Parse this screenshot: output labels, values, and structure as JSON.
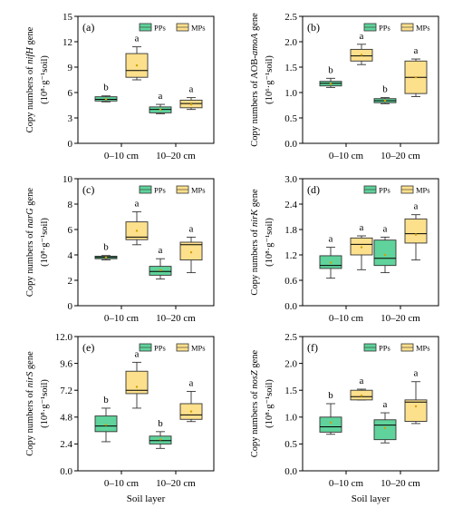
{
  "colors": {
    "PPs": "#5fd39b",
    "MPs": "#fde08c",
    "median": "#000000",
    "mean": "#d4a000"
  },
  "xlabel_text": "Soil layer",
  "chart_data": [
    {
      "type": "boxplot",
      "panel": "(a)",
      "ylabel_prefix": "Copy numbers of ",
      "gene": "nifH",
      "ylabel_suffix": " gene",
      "unit": "(10⁸·g⁻¹soil)",
      "ylim": [
        0,
        15
      ],
      "yticks": [
        0,
        3,
        6,
        9,
        12,
        15
      ],
      "categories": [
        "0–10 cm",
        "10–20 cm"
      ],
      "legend": [
        "PPs",
        "MPs"
      ],
      "legend_position": "top-right",
      "series": [
        {
          "name": "PPs",
          "boxes": [
            {
              "min": 4.9,
              "q1": 5.0,
              "median": 5.2,
              "q3": 5.5,
              "max": 5.6,
              "mean": 5.2,
              "sig": "b"
            },
            {
              "min": 3.5,
              "q1": 3.6,
              "median": 4.0,
              "q3": 4.3,
              "max": 4.6,
              "mean": 4.0,
              "sig": "a"
            }
          ]
        },
        {
          "name": "MPs",
          "boxes": [
            {
              "min": 7.5,
              "q1": 7.8,
              "median": 8.6,
              "q3": 10.6,
              "max": 11.4,
              "mean": 9.2,
              "sig": "a"
            },
            {
              "min": 4.0,
              "q1": 4.2,
              "median": 4.7,
              "q3": 5.1,
              "max": 5.4,
              "mean": 4.6,
              "sig": "a"
            }
          ]
        }
      ]
    },
    {
      "type": "boxplot",
      "panel": "(b)",
      "ylabel_prefix": "Copy numbers of AOB-",
      "gene": "amoA",
      "ylabel_suffix": " gene",
      "unit": "(10⁶·g⁻¹soil)",
      "ylim": [
        0.0,
        2.5
      ],
      "yticks": [
        0.0,
        0.5,
        1.0,
        1.5,
        2.0,
        2.5
      ],
      "categories": [
        "0–10 cm",
        "10–20 cm"
      ],
      "legend": [
        "PPs",
        "MPs"
      ],
      "legend_position": "top-right",
      "series": [
        {
          "name": "PPs",
          "boxes": [
            {
              "min": 1.1,
              "q1": 1.13,
              "median": 1.18,
              "q3": 1.22,
              "max": 1.28,
              "mean": 1.17,
              "sig": "b"
            },
            {
              "min": 0.78,
              "q1": 0.8,
              "median": 0.84,
              "q3": 0.88,
              "max": 0.9,
              "mean": 0.84,
              "sig": "b"
            }
          ]
        },
        {
          "name": "MPs",
          "boxes": [
            {
              "min": 1.55,
              "q1": 1.62,
              "median": 1.72,
              "q3": 1.85,
              "max": 1.95,
              "mean": 1.74,
              "sig": "a"
            },
            {
              "min": 0.92,
              "q1": 0.98,
              "median": 1.3,
              "q3": 1.62,
              "max": 1.66,
              "mean": 1.3,
              "sig": "a"
            }
          ]
        }
      ]
    },
    {
      "type": "boxplot",
      "panel": "(c)",
      "ylabel_prefix": "Copy numbers of ",
      "gene": "narG",
      "ylabel_suffix": " gene",
      "unit": "(10⁸·g⁻¹soil)",
      "ylim": [
        0,
        10
      ],
      "yticks": [
        0,
        2,
        4,
        6,
        8,
        10
      ],
      "categories": [
        "0–10 cm",
        "10–20 cm"
      ],
      "legend": [
        "PPs",
        "MPs"
      ],
      "legend_position": "top-right",
      "series": [
        {
          "name": "PPs",
          "boxes": [
            {
              "min": 3.6,
              "q1": 3.7,
              "median": 3.8,
              "q3": 3.9,
              "max": 3.95,
              "mean": 3.8,
              "sig": "b"
            },
            {
              "min": 2.1,
              "q1": 2.4,
              "median": 2.7,
              "q3": 3.1,
              "max": 3.7,
              "mean": 2.8,
              "sig": "a"
            }
          ]
        },
        {
          "name": "MPs",
          "boxes": [
            {
              "min": 4.8,
              "q1": 5.2,
              "median": 5.4,
              "q3": 6.6,
              "max": 7.4,
              "mean": 5.9,
              "sig": "a"
            },
            {
              "min": 2.6,
              "q1": 3.6,
              "median": 4.8,
              "q3": 5.0,
              "max": 5.4,
              "mean": 4.2,
              "sig": "a"
            }
          ]
        }
      ]
    },
    {
      "type": "boxplot",
      "panel": "(d)",
      "ylabel_prefix": "Copy numbers of ",
      "gene": "nirK",
      "ylabel_suffix": " gene",
      "unit": "(10⁸·g⁻¹soil)",
      "ylim": [
        0.0,
        3.0
      ],
      "yticks": [
        0.0,
        0.6,
        1.2,
        1.8,
        2.4,
        3.0
      ],
      "categories": [
        "0–10 cm",
        "10–20 cm"
      ],
      "legend": [
        "PPs",
        "MPs"
      ],
      "legend_position": "top-right",
      "series": [
        {
          "name": "PPs",
          "boxes": [
            {
              "min": 0.65,
              "q1": 0.88,
              "median": 0.95,
              "q3": 1.18,
              "max": 1.38,
              "mean": 1.02,
              "sig": "a"
            },
            {
              "min": 0.78,
              "q1": 0.95,
              "median": 1.12,
              "q3": 1.55,
              "max": 1.62,
              "mean": 1.2,
              "sig": "a"
            }
          ]
        },
        {
          "name": "MPs",
          "boxes": [
            {
              "min": 0.85,
              "q1": 1.2,
              "median": 1.45,
              "q3": 1.6,
              "max": 1.65,
              "mean": 1.38,
              "sig": "a"
            },
            {
              "min": 1.08,
              "q1": 1.48,
              "median": 1.7,
              "q3": 2.05,
              "max": 2.15,
              "mean": 1.68,
              "sig": "a"
            }
          ]
        }
      ]
    },
    {
      "type": "boxplot",
      "panel": "(e)",
      "ylabel_prefix": "Copy numbers of ",
      "gene": "nirS",
      "ylabel_suffix": " gene",
      "unit": "(10⁸·g⁻¹soil)",
      "ylim": [
        0.0,
        12.0
      ],
      "yticks": [
        0.0,
        2.4,
        4.8,
        7.2,
        9.6,
        12.0
      ],
      "categories": [
        "0–10 cm",
        "10–20 cm"
      ],
      "legend": [
        "PPs",
        "MPs"
      ],
      "legend_position": "top-right",
      "series": [
        {
          "name": "PPs",
          "boxes": [
            {
              "min": 2.6,
              "q1": 3.5,
              "median": 4.0,
              "q3": 4.9,
              "max": 5.6,
              "mean": 4.1,
              "sig": "b"
            },
            {
              "min": 2.0,
              "q1": 2.4,
              "median": 2.7,
              "q3": 3.1,
              "max": 3.5,
              "mean": 2.8,
              "sig": "b"
            }
          ]
        },
        {
          "name": "MPs",
          "boxes": [
            {
              "min": 5.6,
              "q1": 6.9,
              "median": 7.2,
              "q3": 8.9,
              "max": 9.7,
              "mean": 7.5,
              "sig": "a"
            },
            {
              "min": 4.4,
              "q1": 4.6,
              "median": 5.0,
              "q3": 6.0,
              "max": 7.1,
              "mean": 5.3,
              "sig": "a"
            }
          ]
        }
      ]
    },
    {
      "type": "boxplot",
      "panel": "(f)",
      "ylabel_prefix": "Copy numbers of ",
      "gene": "nosZ",
      "ylabel_suffix": " gene",
      "unit": "(10⁸·g⁻¹soil)",
      "ylim": [
        0.0,
        2.5
      ],
      "yticks": [
        0.0,
        0.5,
        1.0,
        1.5,
        2.0,
        2.5
      ],
      "categories": [
        "0–10 cm",
        "10–20 cm"
      ],
      "legend": [
        "PPs",
        "MPs"
      ],
      "legend_position": "top-right",
      "series": [
        {
          "name": "PPs",
          "boxes": [
            {
              "min": 0.68,
              "q1": 0.72,
              "median": 0.82,
              "q3": 1.0,
              "max": 1.25,
              "mean": 0.9,
              "sig": "b"
            },
            {
              "min": 0.52,
              "q1": 0.58,
              "median": 0.85,
              "q3": 0.95,
              "max": 1.08,
              "mean": 0.8,
              "sig": "a"
            }
          ]
        },
        {
          "name": "MPs",
          "boxes": [
            {
              "min": 1.32,
              "q1": 1.32,
              "median": 1.38,
              "q3": 1.5,
              "max": 1.52,
              "mean": 1.4,
              "sig": "a"
            },
            {
              "min": 0.88,
              "q1": 0.92,
              "median": 1.28,
              "q3": 1.32,
              "max": 1.66,
              "mean": 1.2,
              "sig": "a"
            }
          ]
        }
      ]
    }
  ]
}
